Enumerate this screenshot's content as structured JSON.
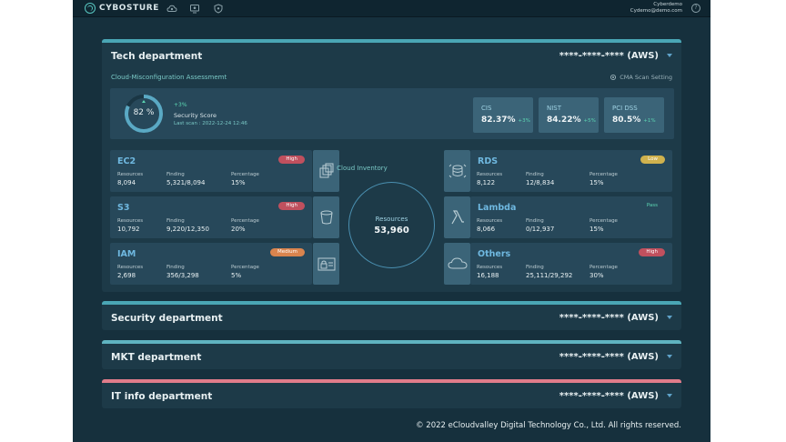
{
  "app": {
    "brand": "CYBOSTURE"
  },
  "user": {
    "name": "Cyberdemo",
    "email": "Cydemo@demo.com"
  },
  "help": {
    "glyph": "?"
  },
  "nav_icons": [
    "cloud-icon",
    "monitor-icon",
    "shield-icon"
  ],
  "departments": [
    {
      "title": "Tech department",
      "account": "****-****-**** (AWS)",
      "bar_color": "#4aa6b5"
    },
    {
      "title": "Security department",
      "account": "****-****-**** (AWS)",
      "bar_color": "#4aa6b5"
    },
    {
      "title": "MKT department",
      "account": "****-****-**** (AWS)",
      "bar_color": "#5fb3c0"
    },
    {
      "title": "IT info department",
      "account": "****-****-**** (AWS)",
      "bar_color": "#e07c8a"
    }
  ],
  "assessment": {
    "title": "Cloud-Misconfiguration Assessmemt",
    "setting_label": "CMA Scan Setting",
    "score": {
      "value": "82 %",
      "percent": 82,
      "delta": "+3%",
      "label": "Security Score",
      "last_scan": "Last scan : 2022-12-24  12:46"
    },
    "standards": [
      {
        "name": "CIS",
        "value": "82.37%",
        "delta": "+3%"
      },
      {
        "name": "NIST",
        "value": "84.22%",
        "delta": "+5%"
      },
      {
        "name": "PCI DSS",
        "value": "80.5%",
        "delta": "+1%"
      }
    ]
  },
  "stat_labels": {
    "resources": "Resources",
    "finding": "Finding",
    "percentage": "Percentage"
  },
  "services": [
    {
      "name": "EC2",
      "badge": "High",
      "badge_color": "#c0505e",
      "resources": "8,094",
      "finding": "5,321/8,094",
      "percentage": "15%",
      "icon": "copy-instances-icon"
    },
    {
      "name": "S3",
      "badge": "High",
      "badge_color": "#c0505e",
      "resources": "10,792",
      "finding": "9,220/12,350",
      "percentage": "20%",
      "icon": "bucket-icon"
    },
    {
      "name": "IAM",
      "badge": "Medium",
      "badge_color": "#d9844e",
      "resources": "2,698",
      "finding": "356/3,298",
      "percentage": "5%",
      "icon": "id-lock-icon"
    },
    {
      "name": "RDS",
      "badge": "Low",
      "badge_color": "#d0b24e",
      "resources": "8,122",
      "finding": "12/8,834",
      "percentage": "15%",
      "icon": "database-icon"
    },
    {
      "name": "Lambda",
      "badge": "Pass",
      "badge_color": "",
      "resources": "8,066",
      "finding": "0/12,937",
      "percentage": "15%",
      "icon": "lambda-icon"
    },
    {
      "name": "Others",
      "badge": "High",
      "badge_color": "#c0505e",
      "resources": "16,188",
      "finding": "25,111/29,292",
      "percentage": "30%",
      "icon": "cloud-icon"
    }
  ],
  "inventory": {
    "title": "Cloud Inventory",
    "label": "Resources",
    "value": "53,960"
  },
  "footer": {
    "text": "© 2022 eCloudvalley Digital Technology Co., Ltd. All rights reserved."
  }
}
